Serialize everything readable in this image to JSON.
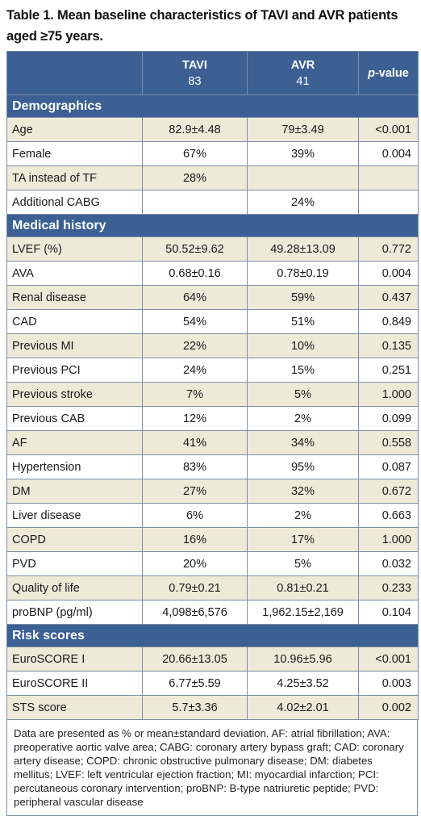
{
  "caption": "Table 1. Mean baseline characteristics of TAVI and AVR patients aged ≥75 years.",
  "header": {
    "tavi_label": "TAVI",
    "tavi_n": "83",
    "avr_label": "AVR",
    "avr_n": "41",
    "p_italic": "p",
    "p_rest": "-value"
  },
  "sections": [
    {
      "title": "Demographics",
      "rows": [
        {
          "label": "Age",
          "tavi": "82.9±4.48",
          "avr": "79±3.49",
          "p": "<0.001"
        },
        {
          "label": "Female",
          "tavi": "67%",
          "avr": "39%",
          "p": "0.004"
        },
        {
          "label": "TA instead of TF",
          "tavi": "28%",
          "avr": "",
          "p": ""
        },
        {
          "label": "Additional CABG",
          "tavi": "",
          "avr": "24%",
          "p": ""
        }
      ]
    },
    {
      "title": "Medical history",
      "rows": [
        {
          "label": "LVEF (%)",
          "tavi": "50.52±9.62",
          "avr": "49.28±13.09",
          "p": "0.772"
        },
        {
          "label": "AVA",
          "tavi": "0.68±0.16",
          "avr": "0.78±0.19",
          "p": "0.004"
        },
        {
          "label": "Renal disease",
          "tavi": "64%",
          "avr": "59%",
          "p": "0.437"
        },
        {
          "label": "CAD",
          "tavi": "54%",
          "avr": "51%",
          "p": "0.849"
        },
        {
          "label": "Previous MI",
          "tavi": "22%",
          "avr": "10%",
          "p": "0.135"
        },
        {
          "label": "Previous PCI",
          "tavi": "24%",
          "avr": "15%",
          "p": "0.251"
        },
        {
          "label": "Previous stroke",
          "tavi": "7%",
          "avr": "5%",
          "p": "1.000"
        },
        {
          "label": "Previous CAB",
          "tavi": "12%",
          "avr": "2%",
          "p": "0.099"
        },
        {
          "label": "AF",
          "tavi": "41%",
          "avr": "34%",
          "p": "0.558"
        },
        {
          "label": "Hypertension",
          "tavi": "83%",
          "avr": "95%",
          "p": "0.087"
        },
        {
          "label": "DM",
          "tavi": "27%",
          "avr": "32%",
          "p": "0.672"
        },
        {
          "label": "Liver disease",
          "tavi": "6%",
          "avr": "2%",
          "p": "0.663"
        },
        {
          "label": "COPD",
          "tavi": "16%",
          "avr": "17%",
          "p": "1.000"
        },
        {
          "label": "PVD",
          "tavi": "20%",
          "avr": "5%",
          "p": "0.032"
        },
        {
          "label": "Quality of life",
          "tavi": "0.79±0.21",
          "avr": "0.81±0.21",
          "p": "0.233"
        },
        {
          "label": "proBNP (pg/ml)",
          "tavi": "4,098±6,576",
          "avr": "1,962.15±2,169",
          "p": "0.104"
        }
      ]
    },
    {
      "title": "Risk scores",
      "rows": [
        {
          "label": "EuroSCORE I",
          "tavi": "20.66±13.05",
          "avr": "10.96±5.96",
          "p": "<0.001"
        },
        {
          "label": "EuroSCORE II",
          "tavi": "6.77±5.59",
          "avr": "4.25±3.52",
          "p": "0.003"
        },
        {
          "label": "STS score",
          "tavi": "5.7±3.36",
          "avr": "4.02±2.01",
          "p": "0.002"
        }
      ]
    }
  ],
  "footnote": "Data are presented as % or mean±standard deviation. AF: atrial fibrillation; AVA: preoperative aortic valve area; CABG: coronary artery bypass graft; CAD: coronary artery disease; COPD: chronic obstructive pulmonary disease; DM: diabetes mellitus; LVEF: left ventricular ejection fraction; MI: myocardial infarction; PCI: percutaneous coronary intervention; proBNP: B-type natriuretic peptide; PVD: peripheral vascular disease",
  "colors": {
    "header_bg": "#3c5f94",
    "row_light": "#efe9d8",
    "row_white": "#ffffff",
    "border": "#7b8ea6"
  }
}
